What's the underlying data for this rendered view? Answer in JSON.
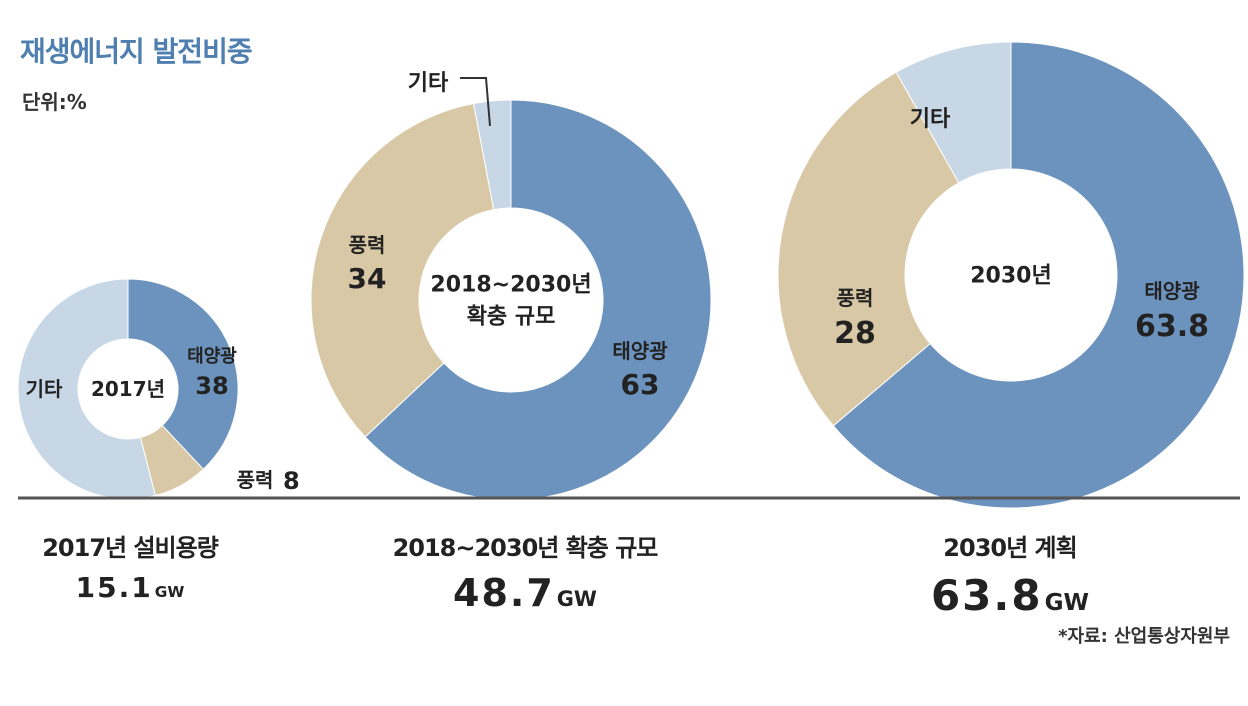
{
  "title": "재생에너지 발전비중",
  "unit": "단위:%",
  "colors": {
    "solar": "#6c93bd",
    "wind": "#d9c8a6",
    "other": "#c8d7e6",
    "baseline": "#555555"
  },
  "chart_data": [
    {
      "type": "donut",
      "center_label": [
        "2017년"
      ],
      "caption": "2017년 설비용량",
      "capacity": "15.1",
      "capacity_unit": "GW",
      "slices": [
        {
          "name": "태양광",
          "value": 38,
          "color_key": "solar",
          "value_label": "38"
        },
        {
          "name": "풍력",
          "value": 8,
          "color_key": "wind",
          "value_label": "8"
        },
        {
          "name": "기타",
          "value": 54,
          "color_key": "other",
          "value_label": ""
        }
      ]
    },
    {
      "type": "donut",
      "center_label": [
        "2018~2030년",
        "확충 규모"
      ],
      "caption": "2018~2030년 확충 규모",
      "capacity": "48.7",
      "capacity_unit": "GW",
      "slices": [
        {
          "name": "태양광",
          "value": 63,
          "color_key": "solar",
          "value_label": "63"
        },
        {
          "name": "풍력",
          "value": 34,
          "color_key": "wind",
          "value_label": "34"
        },
        {
          "name": "기타",
          "value": 3,
          "color_key": "other",
          "value_label": ""
        }
      ]
    },
    {
      "type": "donut",
      "center_label": [
        "2030년"
      ],
      "caption": "2030년 계획",
      "capacity": "63.8",
      "capacity_unit": "GW",
      "slices": [
        {
          "name": "태양광",
          "value": 63.8,
          "color_key": "solar",
          "value_label": "63.8"
        },
        {
          "name": "풍력",
          "value": 28,
          "color_key": "wind",
          "value_label": "28"
        },
        {
          "name": "기타",
          "value": 8.2,
          "color_key": "other",
          "value_label": ""
        }
      ]
    }
  ],
  "source": "*자료: 산업통상자원부"
}
